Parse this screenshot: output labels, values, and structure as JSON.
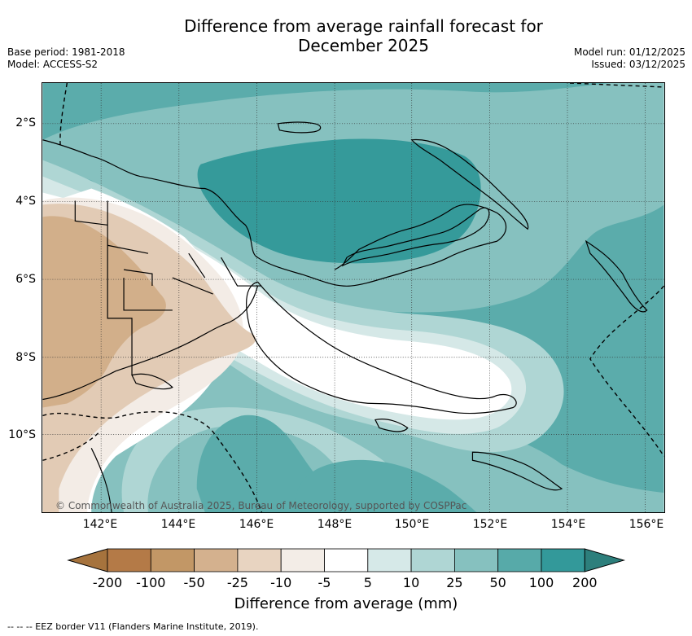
{
  "title_line1": "Difference from average rainfall forecast for",
  "title_line2": "December 2025",
  "meta_left": {
    "base_period": "Base period: 1981-2018",
    "model": "Model: ACCESS-S2"
  },
  "meta_right": {
    "model_run": "Model run: 01/12/2025",
    "issued": "Issued: 03/12/2025"
  },
  "copyright": "© Commonwealth of Australia 2025, Bureau of Meteorology, supported by COSPPac",
  "axes": {
    "x_ticks": [
      "142°E",
      "144°E",
      "146°E",
      "148°E",
      "150°E",
      "152°E",
      "154°E",
      "156°E"
    ],
    "y_ticks": [
      "2°S",
      "4°S",
      "6°S",
      "8°S",
      "10°S"
    ]
  },
  "colorbar": {
    "labels": [
      "-200",
      "-100",
      "-50",
      "-25",
      "-10",
      "-5",
      "5",
      "10",
      "25",
      "50",
      "100",
      "200"
    ],
    "colors": [
      "#a6733d",
      "#b47a47",
      "#c29766",
      "#d4b18e",
      "#e8d4c1",
      "#f3ede7",
      "#ffffff",
      "#d6e9e8",
      "#afd6d4",
      "#86c1bf",
      "#57aaa9",
      "#33999a",
      "#2d7f7c"
    ],
    "title": "Difference from average (mm)"
  },
  "legend_note": "--  --  -- EEZ border V11 (Flanders Marine Institute, 2019).",
  "map_fill_colors": {
    "brown_dark": "#d2af8a",
    "brown_mid": "#e2cbb5",
    "brown_light": "#f3ece6",
    "white": "#ffffff",
    "teal_1": "#d5e8e7",
    "teal_2": "#afd6d4",
    "teal_3": "#86c1bf",
    "teal_4": "#5bacab",
    "teal_5": "#359a9a"
  }
}
